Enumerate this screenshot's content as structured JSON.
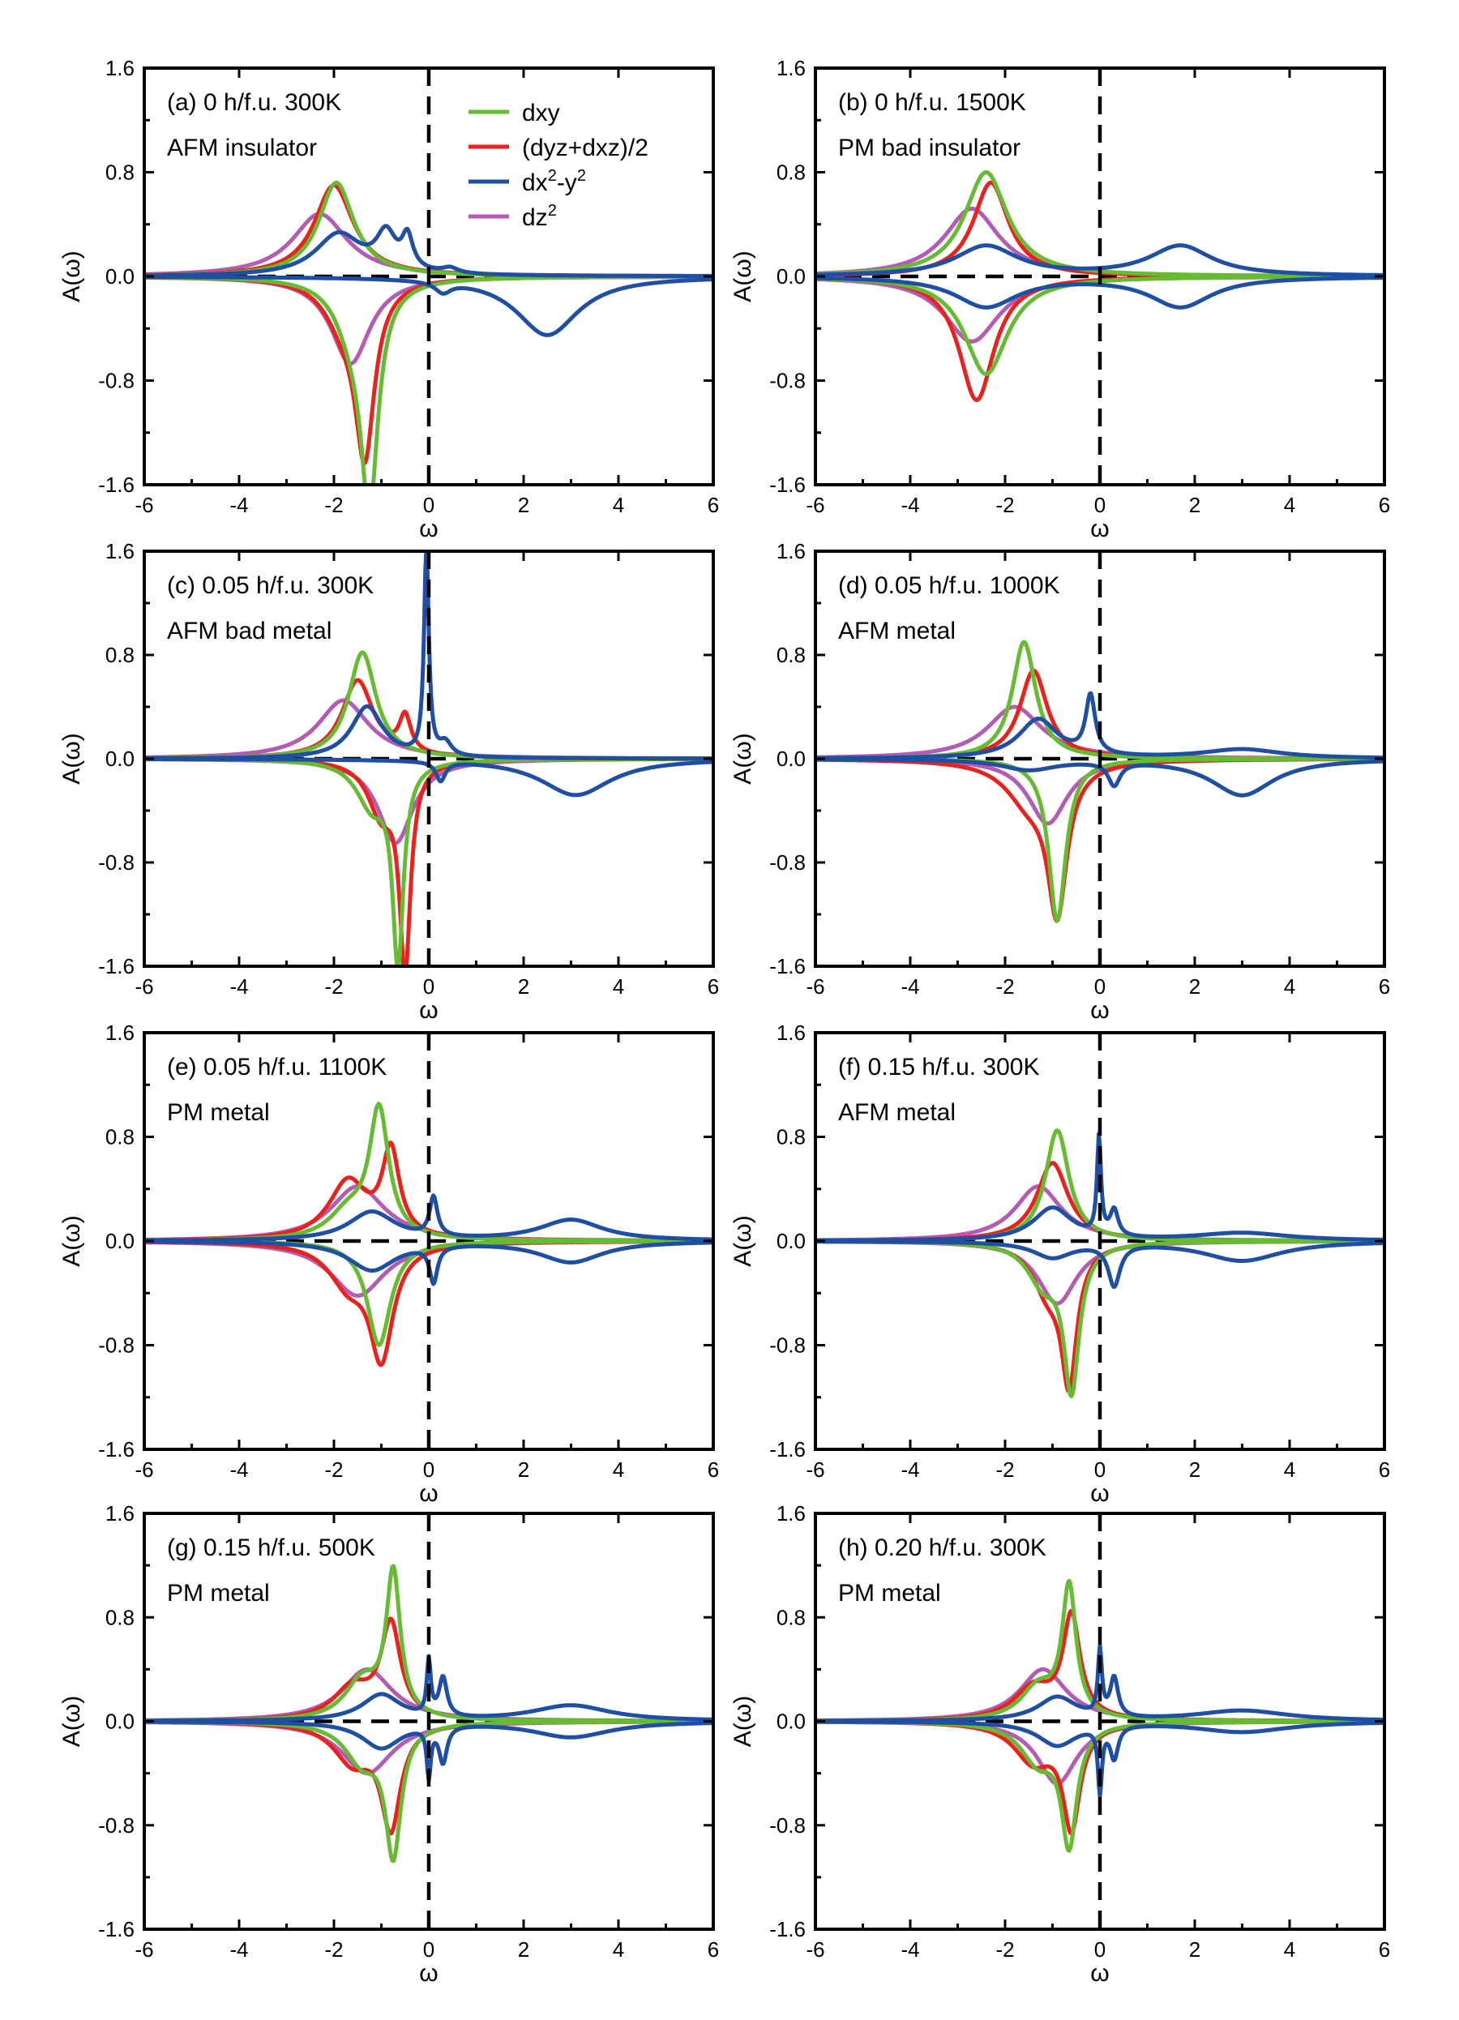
{
  "figure": {
    "axis_label_x": "ω",
    "axis_label_y": "A(ω)",
    "colors": {
      "dxy": "#66bb33",
      "dyz_dxz": "#e8231e",
      "dx2y2": "#1f4fa3",
      "dz2": "#b45cb4"
    },
    "legend": [
      {
        "key": "dxy",
        "label": "dxy"
      },
      {
        "key": "dyz_dxz",
        "label": "(dyz+dxz)/2"
      },
      {
        "key": "dx2y2",
        "label": "dx²-y²",
        "label_base": "dx",
        "sup1": "2",
        "mid": "-y",
        "sup2": "2"
      },
      {
        "key": "dz2",
        "label": "dz²",
        "label_base": "dz",
        "sup1": "2"
      }
    ]
  },
  "chart_data": [
    {
      "type": "line",
      "panel": "a",
      "title": "(a) 0 h/f.u. 300K",
      "subtitle": "AFM insulator",
      "xlabel": "ω",
      "ylabel": "A(ω)",
      "xlim": [
        -6,
        6
      ],
      "ylim": [
        -1.6,
        1.6
      ],
      "xticks": [
        -6,
        -4,
        -2,
        0,
        2,
        4,
        6
      ],
      "yticks": [
        -1.6,
        -0.8,
        0.0,
        0.8,
        1.6
      ],
      "series": [
        {
          "name": "dxy",
          "key": "dxy",
          "up": [
            [
              -1.95,
              0.72,
              0.45
            ]
          ],
          "down": [
            [
              -1.25,
              -1.6,
              0.22
            ],
            [
              -1.6,
              -0.35,
              0.45
            ]
          ]
        },
        {
          "name": "(dyz+dxz)/2",
          "key": "dyz_dxz",
          "up": [
            [
              -2.0,
              0.7,
              0.5
            ]
          ],
          "down": [
            [
              -1.35,
              -1.27,
              0.25
            ],
            [
              -1.8,
              -0.3,
              0.5
            ]
          ]
        },
        {
          "name": "dx2-y2",
          "key": "dx2y2",
          "up": [
            [
              -1.9,
              0.32,
              0.6
            ],
            [
              -0.9,
              0.28,
              0.25
            ],
            [
              -0.45,
              0.25,
              0.14
            ],
            [
              0.45,
              0.04,
              0.2
            ]
          ],
          "down": [
            [
              2.5,
              -0.45,
              0.8
            ],
            [
              0.3,
              -0.08,
              0.2
            ]
          ]
        },
        {
          "name": "dz2",
          "key": "dz2",
          "up": [
            [
              -2.3,
              0.48,
              0.7
            ]
          ],
          "down": [
            [
              -1.65,
              -0.67,
              0.5
            ]
          ]
        }
      ]
    },
    {
      "type": "line",
      "panel": "b",
      "title": "(b) 0 h/f.u. 1500K",
      "subtitle": "PM bad insulator",
      "xlabel": "ω",
      "ylabel": "A(ω)",
      "xlim": [
        -6,
        6
      ],
      "ylim": [
        -1.6,
        1.6
      ],
      "xticks": [
        -6,
        -4,
        -2,
        0,
        2,
        4,
        6
      ],
      "yticks": [
        -1.6,
        -0.8,
        0.0,
        0.8,
        1.6
      ],
      "series": [
        {
          "name": "dxy",
          "key": "dxy",
          "up": [
            [
              -2.4,
              0.8,
              0.55
            ]
          ],
          "down": [
            [
              -2.4,
              -0.75,
              0.55
            ]
          ]
        },
        {
          "name": "(dyz+dxz)/2",
          "key": "dyz_dxz",
          "up": [
            [
              -2.3,
              0.72,
              0.45
            ]
          ],
          "down": [
            [
              -2.6,
              -0.95,
              0.45
            ]
          ]
        },
        {
          "name": "dx2-y2",
          "key": "dx2y2",
          "up": [
            [
              -2.4,
              0.23,
              0.8
            ],
            [
              1.7,
              0.23,
              0.8
            ]
          ],
          "down": [
            [
              -2.4,
              -0.23,
              0.8
            ],
            [
              1.7,
              -0.23,
              0.8
            ]
          ]
        },
        {
          "name": "dz2",
          "key": "dz2",
          "up": [
            [
              -2.7,
              0.52,
              0.7
            ]
          ],
          "down": [
            [
              -2.7,
              -0.5,
              0.7
            ]
          ]
        }
      ]
    },
    {
      "type": "line",
      "panel": "c",
      "title": "(c) 0.05 h/f.u. 300K",
      "subtitle": "AFM bad metal",
      "xlabel": "ω",
      "ylabel": "A(ω)",
      "xlim": [
        -6,
        6
      ],
      "ylim": [
        -1.6,
        1.6
      ],
      "xticks": [
        -6,
        -4,
        -2,
        0,
        2,
        4,
        6
      ],
      "yticks": [
        -1.6,
        -0.8,
        0.0,
        0.8,
        1.6
      ],
      "series": [
        {
          "name": "dxy",
          "key": "dxy",
          "up": [
            [
              -1.4,
              0.82,
              0.35
            ]
          ],
          "down": [
            [
              -0.65,
              -1.5,
              0.14
            ],
            [
              -1.2,
              -0.35,
              0.4
            ]
          ]
        },
        {
          "name": "(dyz+dxz)/2",
          "key": "dyz_dxz",
          "up": [
            [
              -1.5,
              0.6,
              0.4
            ],
            [
              -0.5,
              0.28,
              0.15
            ]
          ],
          "down": [
            [
              -0.5,
              -1.55,
              0.14
            ],
            [
              -1.0,
              -0.4,
              0.35
            ]
          ]
        },
        {
          "name": "dx2-y2",
          "key": "dx2y2",
          "up": [
            [
              -1.3,
              0.4,
              0.4
            ],
            [
              -0.05,
              1.6,
              0.06
            ],
            [
              0.35,
              0.1,
              0.15
            ]
          ],
          "down": [
            [
              3.1,
              -0.28,
              0.9
            ],
            [
              0.25,
              -0.15,
              0.12
            ]
          ]
        },
        {
          "name": "dz2",
          "key": "dz2",
          "up": [
            [
              -1.8,
              0.45,
              0.65
            ]
          ],
          "down": [
            [
              -0.7,
              -0.65,
              0.45
            ]
          ]
        }
      ]
    },
    {
      "type": "line",
      "panel": "d",
      "title": "(d) 0.05 h/f.u. 1000K",
      "subtitle": "AFM metal",
      "xlabel": "ω",
      "ylabel": "A(ω)",
      "xlim": [
        -6,
        6
      ],
      "ylim": [
        -1.6,
        1.6
      ],
      "xticks": [
        -6,
        -4,
        -2,
        0,
        2,
        4,
        6
      ],
      "yticks": [
        -1.6,
        -0.8,
        0.0,
        0.8,
        1.6
      ],
      "series": [
        {
          "name": "dxy",
          "key": "dxy",
          "up": [
            [
              -1.6,
              0.9,
              0.3
            ]
          ],
          "down": [
            [
              -0.9,
              -1.25,
              0.22
            ]
          ]
        },
        {
          "name": "(dyz+dxz)/2",
          "key": "dyz_dxz",
          "up": [
            [
              -1.4,
              0.68,
              0.35
            ]
          ],
          "down": [
            [
              -0.9,
              -1.1,
              0.25
            ],
            [
              -1.5,
              -0.3,
              0.6
            ]
          ]
        },
        {
          "name": "dx2-y2",
          "key": "dx2y2",
          "up": [
            [
              -1.3,
              0.3,
              0.5
            ],
            [
              -0.2,
              0.45,
              0.12
            ],
            [
              3.0,
              0.07,
              1.0
            ]
          ],
          "down": [
            [
              3.0,
              -0.28,
              0.8
            ],
            [
              0.3,
              -0.18,
              0.15
            ],
            [
              -1.5,
              -0.08,
              0.7
            ]
          ]
        },
        {
          "name": "dz2",
          "key": "dz2",
          "up": [
            [
              -1.8,
              0.4,
              0.7
            ]
          ],
          "down": [
            [
              -1.1,
              -0.5,
              0.5
            ]
          ]
        }
      ]
    },
    {
      "type": "line",
      "panel": "e",
      "title": "(e) 0.05 h/f.u. 1100K",
      "subtitle": "PM metal",
      "xlabel": "ω",
      "ylabel": "A(ω)",
      "xlim": [
        -6,
        6
      ],
      "ylim": [
        -1.6,
        1.6
      ],
      "xticks": [
        -6,
        -4,
        -2,
        0,
        2,
        4,
        6
      ],
      "yticks": [
        -1.6,
        -0.8,
        0.0,
        0.8,
        1.6
      ],
      "series": [
        {
          "name": "dxy",
          "key": "dxy",
          "up": [
            [
              -1.05,
              0.98,
              0.25
            ],
            [
              -1.7,
              0.2,
              0.5
            ]
          ],
          "down": [
            [
              -1.05,
              -0.8,
              0.3
            ]
          ]
        },
        {
          "name": "(dyz+dxz)/2",
          "key": "dyz_dxz",
          "up": [
            [
              -0.8,
              0.65,
              0.22
            ],
            [
              -1.7,
              0.45,
              0.5
            ]
          ],
          "down": [
            [
              -1.0,
              -0.85,
              0.3
            ],
            [
              -1.7,
              -0.3,
              0.5
            ]
          ]
        },
        {
          "name": "dx2-y2",
          "key": "dx2y2",
          "up": [
            [
              -1.2,
              0.22,
              0.6
            ],
            [
              0.1,
              0.3,
              0.1
            ],
            [
              3.0,
              0.16,
              0.8
            ]
          ],
          "down": [
            [
              -1.2,
              -0.22,
              0.6
            ],
            [
              0.1,
              -0.28,
              0.1
            ],
            [
              3.0,
              -0.16,
              0.8
            ]
          ]
        },
        {
          "name": "dz2",
          "key": "dz2",
          "up": [
            [
              -1.5,
              0.42,
              0.7
            ]
          ],
          "down": [
            [
              -1.5,
              -0.42,
              0.7
            ]
          ]
        }
      ]
    },
    {
      "type": "line",
      "panel": "f",
      "title": "(f) 0.15 h/f.u. 300K",
      "subtitle": "AFM metal",
      "xlabel": "ω",
      "ylabel": "A(ω)",
      "xlim": [
        -6,
        6
      ],
      "ylim": [
        -1.6,
        1.6
      ],
      "xticks": [
        -6,
        -4,
        -2,
        0,
        2,
        4,
        6
      ],
      "yticks": [
        -1.6,
        -0.8,
        0.0,
        0.8,
        1.6
      ],
      "series": [
        {
          "name": "dxy",
          "key": "dxy",
          "up": [
            [
              -0.9,
              0.85,
              0.3
            ]
          ],
          "down": [
            [
              -0.6,
              -1.1,
              0.2
            ],
            [
              -1.2,
              -0.3,
              0.4
            ]
          ]
        },
        {
          "name": "(dyz+dxz)/2",
          "key": "dyz_dxz",
          "up": [
            [
              -1.0,
              0.6,
              0.4
            ]
          ],
          "down": [
            [
              -0.65,
              -1.0,
              0.2
            ],
            [
              -1.1,
              -0.35,
              0.4
            ]
          ]
        },
        {
          "name": "dx2-y2",
          "key": "dx2y2",
          "up": [
            [
              -1.0,
              0.25,
              0.5
            ],
            [
              -0.02,
              0.75,
              0.05
            ],
            [
              0.3,
              0.2,
              0.1
            ],
            [
              3.0,
              0.06,
              1.2
            ]
          ],
          "down": [
            [
              0.3,
              -0.32,
              0.15
            ],
            [
              3.0,
              -0.15,
              1.0
            ],
            [
              -1.0,
              -0.12,
              0.5
            ]
          ]
        },
        {
          "name": "dz2",
          "key": "dz2",
          "up": [
            [
              -1.3,
              0.42,
              0.6
            ]
          ],
          "down": [
            [
              -0.9,
              -0.48,
              0.5
            ]
          ]
        }
      ]
    },
    {
      "type": "line",
      "panel": "g",
      "title": "(g) 0.15 h/f.u. 500K",
      "subtitle": "PM metal",
      "xlabel": "ω",
      "ylabel": "A(ω)",
      "xlim": [
        -6,
        6
      ],
      "ylim": [
        -1.6,
        1.6
      ],
      "xticks": [
        -6,
        -4,
        -2,
        0,
        2,
        4,
        6
      ],
      "yticks": [
        -1.6,
        -0.8,
        0.0,
        0.8,
        1.6
      ],
      "series": [
        {
          "name": "dxy",
          "key": "dxy",
          "up": [
            [
              -0.75,
              1.1,
              0.18
            ],
            [
              -1.4,
              0.3,
              0.45
            ]
          ],
          "down": [
            [
              -0.75,
              -0.98,
              0.2
            ],
            [
              -1.4,
              -0.3,
              0.45
            ]
          ]
        },
        {
          "name": "(dyz+dxz)/2",
          "key": "dyz_dxz",
          "up": [
            [
              -0.8,
              0.72,
              0.25
            ],
            [
              -1.6,
              0.25,
              0.5
            ]
          ],
          "down": [
            [
              -0.8,
              -0.78,
              0.25
            ],
            [
              -1.6,
              -0.3,
              0.5
            ]
          ]
        },
        {
          "name": "dx2-y2",
          "key": "dx2y2",
          "up": [
            [
              -1.0,
              0.2,
              0.5
            ],
            [
              0.0,
              0.42,
              0.05
            ],
            [
              0.3,
              0.3,
              0.1
            ],
            [
              3.0,
              0.12,
              1.0
            ]
          ],
          "down": [
            [
              -1.0,
              -0.2,
              0.5
            ],
            [
              0.0,
              -0.38,
              0.05
            ],
            [
              0.3,
              -0.28,
              0.1
            ],
            [
              3.0,
              -0.12,
              1.0
            ]
          ]
        },
        {
          "name": "dz2",
          "key": "dz2",
          "up": [
            [
              -1.3,
              0.4,
              0.65
            ]
          ],
          "down": [
            [
              -1.3,
              -0.4,
              0.65
            ]
          ]
        }
      ]
    },
    {
      "type": "line",
      "panel": "h",
      "title": "(h) 0.20 h/f.u. 300K",
      "subtitle": "PM metal",
      "xlabel": "ω",
      "ylabel": "A(ω)",
      "xlim": [
        -6,
        6
      ],
      "ylim": [
        -1.6,
        1.6
      ],
      "xticks": [
        -6,
        -4,
        -2,
        0,
        2,
        4,
        6
      ],
      "yticks": [
        -1.6,
        -0.8,
        0.0,
        0.8,
        1.6
      ],
      "series": [
        {
          "name": "dxy",
          "key": "dxy",
          "up": [
            [
              -0.65,
              1.0,
              0.18
            ],
            [
              -1.3,
              0.25,
              0.45
            ]
          ],
          "down": [
            [
              -0.65,
              -0.9,
              0.2
            ],
            [
              -1.3,
              -0.3,
              0.45
            ]
          ]
        },
        {
          "name": "(dyz+dxz)/2",
          "key": "dyz_dxz",
          "up": [
            [
              -0.6,
              0.78,
              0.22
            ],
            [
              -1.4,
              0.25,
              0.5
            ]
          ],
          "down": [
            [
              -0.6,
              -0.78,
              0.22
            ],
            [
              -1.4,
              -0.3,
              0.5
            ]
          ]
        },
        {
          "name": "dx2-y2",
          "key": "dx2y2",
          "up": [
            [
              -0.9,
              0.18,
              0.5
            ],
            [
              0.0,
              0.5,
              0.05
            ],
            [
              0.3,
              0.3,
              0.1
            ],
            [
              3.0,
              0.08,
              1.2
            ]
          ],
          "down": [
            [
              -0.9,
              -0.18,
              0.5
            ],
            [
              0.0,
              -0.5,
              0.05
            ],
            [
              0.3,
              -0.25,
              0.1
            ],
            [
              3.0,
              -0.08,
              1.2
            ]
          ]
        },
        {
          "name": "dz2",
          "key": "dz2",
          "up": [
            [
              -1.2,
              0.4,
              0.6
            ]
          ],
          "down": [
            [
              -0.9,
              -0.48,
              0.5
            ]
          ]
        }
      ]
    }
  ]
}
